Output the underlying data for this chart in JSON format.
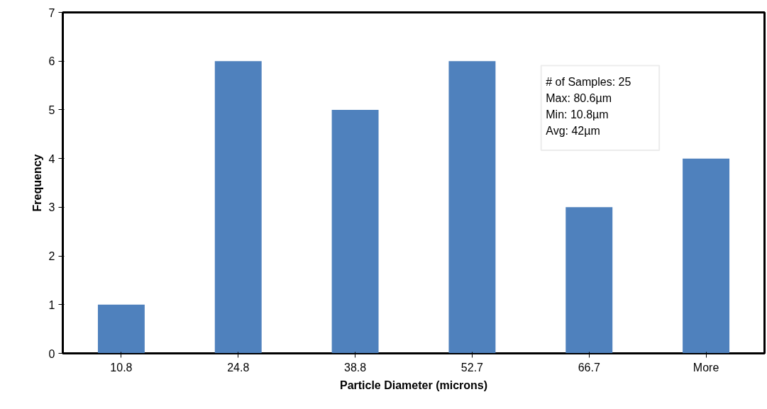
{
  "chart_data": {
    "type": "bar",
    "xlabel": "Particle Diameter (microns)",
    "ylabel": "Frequency",
    "categories": [
      "10.8",
      "24.8",
      "38.8",
      "52.7",
      "66.7",
      "More"
    ],
    "values": [
      1,
      6,
      5,
      6,
      3,
      4
    ],
    "color": "#4f81bd",
    "ylim": [
      0,
      7
    ],
    "yticks": [
      0,
      1,
      2,
      3,
      4,
      5,
      6,
      7
    ],
    "grid": false,
    "annotations": [
      "# of Samples: 25",
      "Max: 80.6µm",
      "Min: 10.8µm",
      "Avg: 42µm"
    ]
  }
}
